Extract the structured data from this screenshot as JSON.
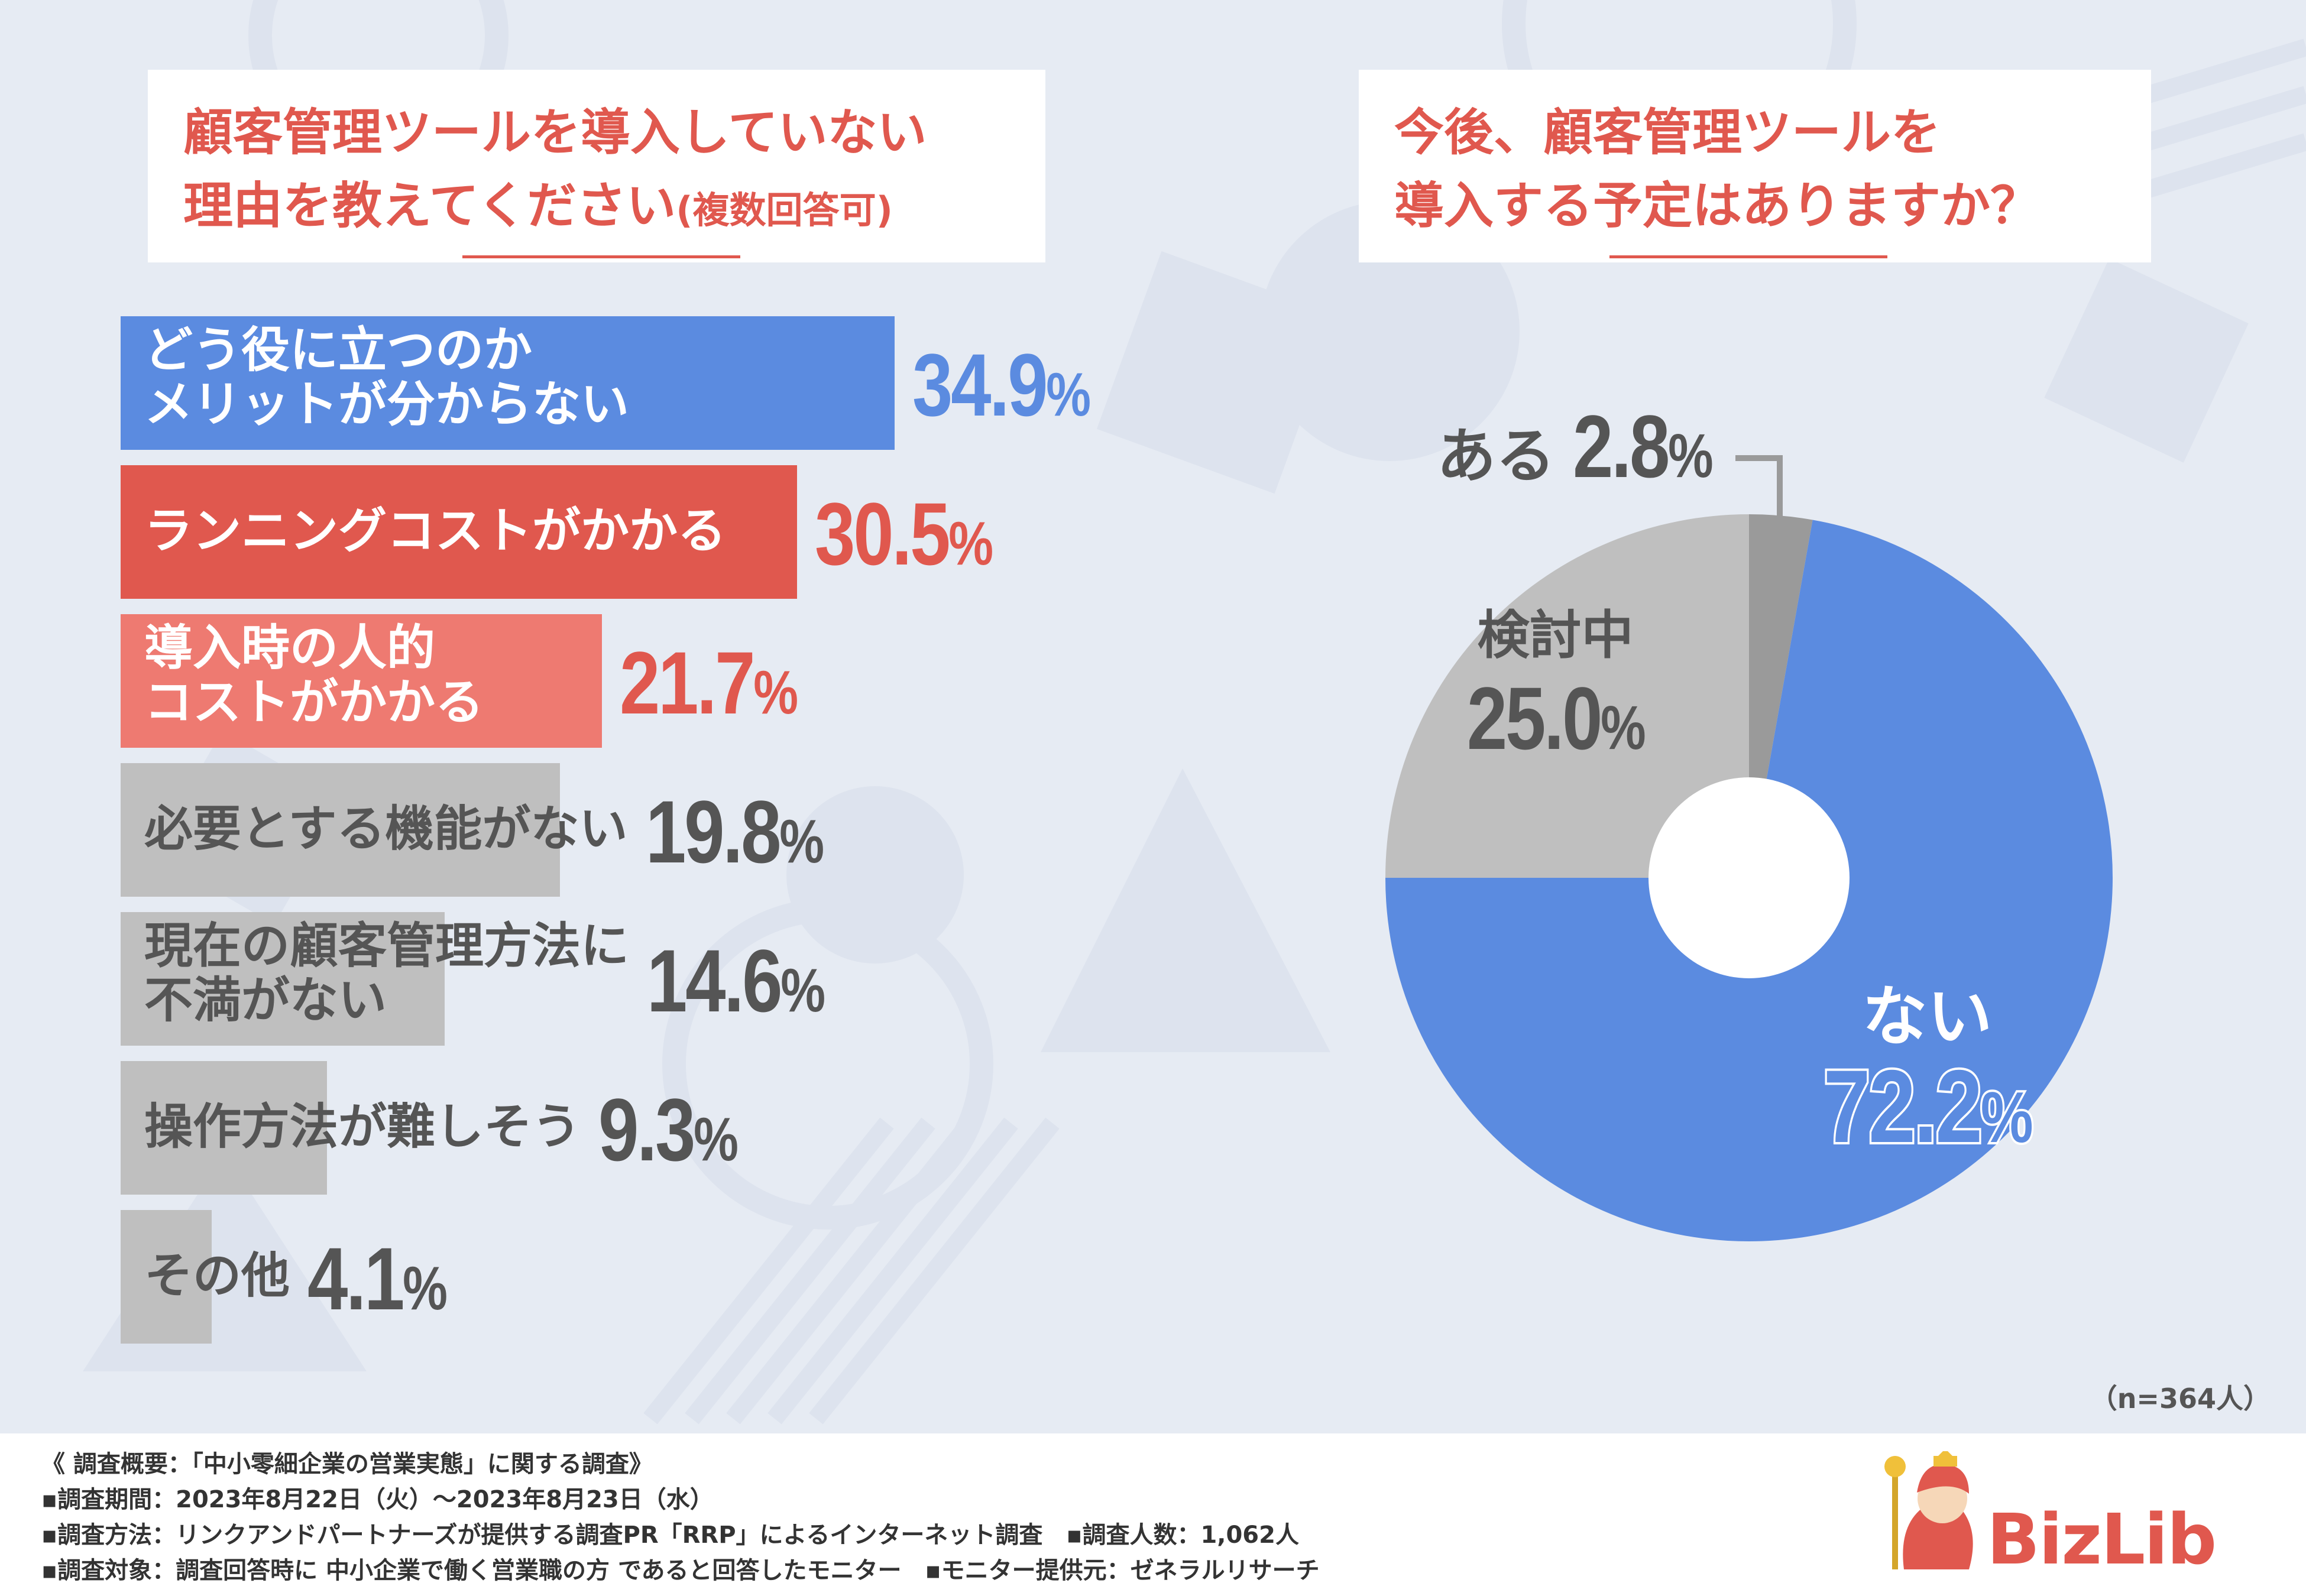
{
  "colors": {
    "blue": "#5b8be0",
    "red": "#e0584e",
    "pink": "#ee7a71",
    "gray": "#bfbfbf",
    "darkgray": "#9a9a9a",
    "text_gray": "#555555",
    "white": "#ffffff"
  },
  "bar_title": {
    "line1": "顧客管理ツールを導入していない",
    "line2": "理由を教えてください",
    "note": "(複数回答可)"
  },
  "pie_title": {
    "line1": "今後、顧客管理ツールを",
    "line2": "導入する予定はありますか？"
  },
  "sample_size": "（n=364人）",
  "footer": {
    "line1": "《 調査概要：「中小零細企業の営業実態」に関する調査》",
    "line2": "▪調査期間：2023年8月22日（火）～2023年8月23日（水）",
    "line3": "▪調査方法：リンクアンドパートナーズが提供する調査PR「RRP」によるインターネット調査　▪調査人数：1,062人",
    "line4": "▪調査対象：調査回答時に 中小企業で働く営業職の方 であると回答したモニター　▪モニター提供元：ゼネラルリサーチ"
  },
  "logo_text": "BizLib",
  "chart_data": [
    {
      "type": "bar",
      "orientation": "horizontal",
      "title": "顧客管理ツールを導入していない理由を教えてください(複数回答可)",
      "categories": [
        [
          "どう役に立つのか",
          "メリットが分からない"
        ],
        [
          "ランニングコストがかかる"
        ],
        [
          "導入時の人的",
          "コストがかかる"
        ],
        [
          "必要とする機能がない"
        ],
        [
          "現在の顧客管理方法に",
          "不満がない"
        ],
        [
          "操作方法が難しそう"
        ],
        [
          "その他"
        ]
      ],
      "values": [
        34.9,
        30.5,
        21.7,
        19.8,
        14.6,
        9.3,
        4.1
      ],
      "value_labels": [
        {
          "n": "34.9",
          "p": "%"
        },
        {
          "n": "30.5",
          "p": "%"
        },
        {
          "n": "21.7",
          "p": "%"
        },
        {
          "n": "19.8",
          "p": "%"
        },
        {
          "n": "14.6",
          "p": "%"
        },
        {
          "n": "9.3",
          "p": "%"
        },
        {
          "n": "4.1",
          "p": "%"
        }
      ],
      "bar_colors": [
        "#5b8be0",
        "#e0584e",
        "#ee7a71",
        "#bfbfbf",
        "#bfbfbf",
        "#bfbfbf",
        "#bfbfbf"
      ],
      "label_colors": [
        "#ffffff",
        "#ffffff",
        "#ffffff",
        "#555555",
        "#555555",
        "#555555",
        "#555555"
      ],
      "value_colors": [
        "#5b8be0",
        "#e0584e",
        "#e0584e",
        "#555555",
        "#555555",
        "#555555",
        "#555555"
      ]
    },
    {
      "type": "pie",
      "donut": true,
      "title": "今後、顧客管理ツールを導入する予定はありますか？",
      "slices": [
        {
          "label": "ある",
          "n": "2.8",
          "p": "%",
          "value": 2.8,
          "color": "#9a9a9a"
        },
        {
          "label": "ない",
          "n": "72.2",
          "p": "%",
          "value": 72.2,
          "color": "#5b8be0"
        },
        {
          "label": "検討中",
          "n": "25.0",
          "p": "%",
          "value": 25.0,
          "color": "#bfbfbf"
        }
      ]
    }
  ]
}
